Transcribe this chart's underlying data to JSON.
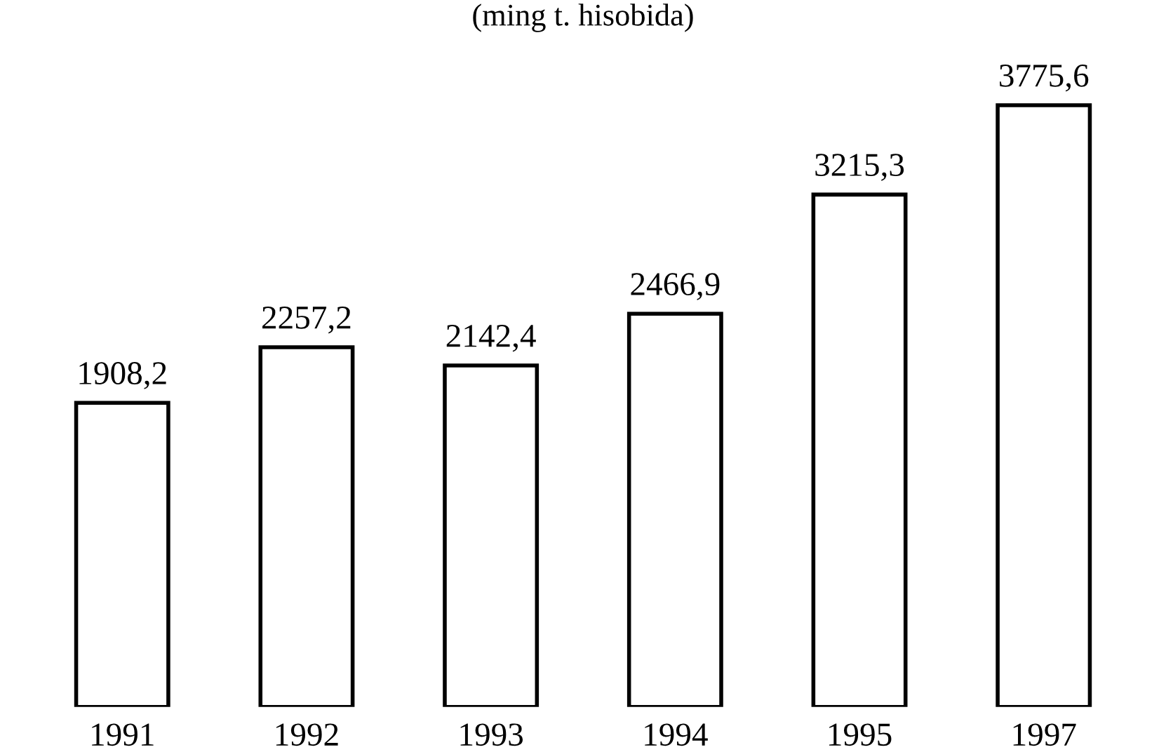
{
  "chart_data": {
    "type": "bar",
    "subtitle": "(ming t. hisobida)",
    "categories": [
      "1991",
      "1992",
      "1993",
      "1994",
      "1995",
      "1997"
    ],
    "values": [
      1908.2,
      2257.2,
      2142.4,
      2466.9,
      3215.3,
      3775.6
    ],
    "value_labels": [
      "1908,2",
      "2257,2",
      "2142,4",
      "2466,9",
      "3215,3",
      "3775,6"
    ],
    "color": "#ffffff"
  }
}
